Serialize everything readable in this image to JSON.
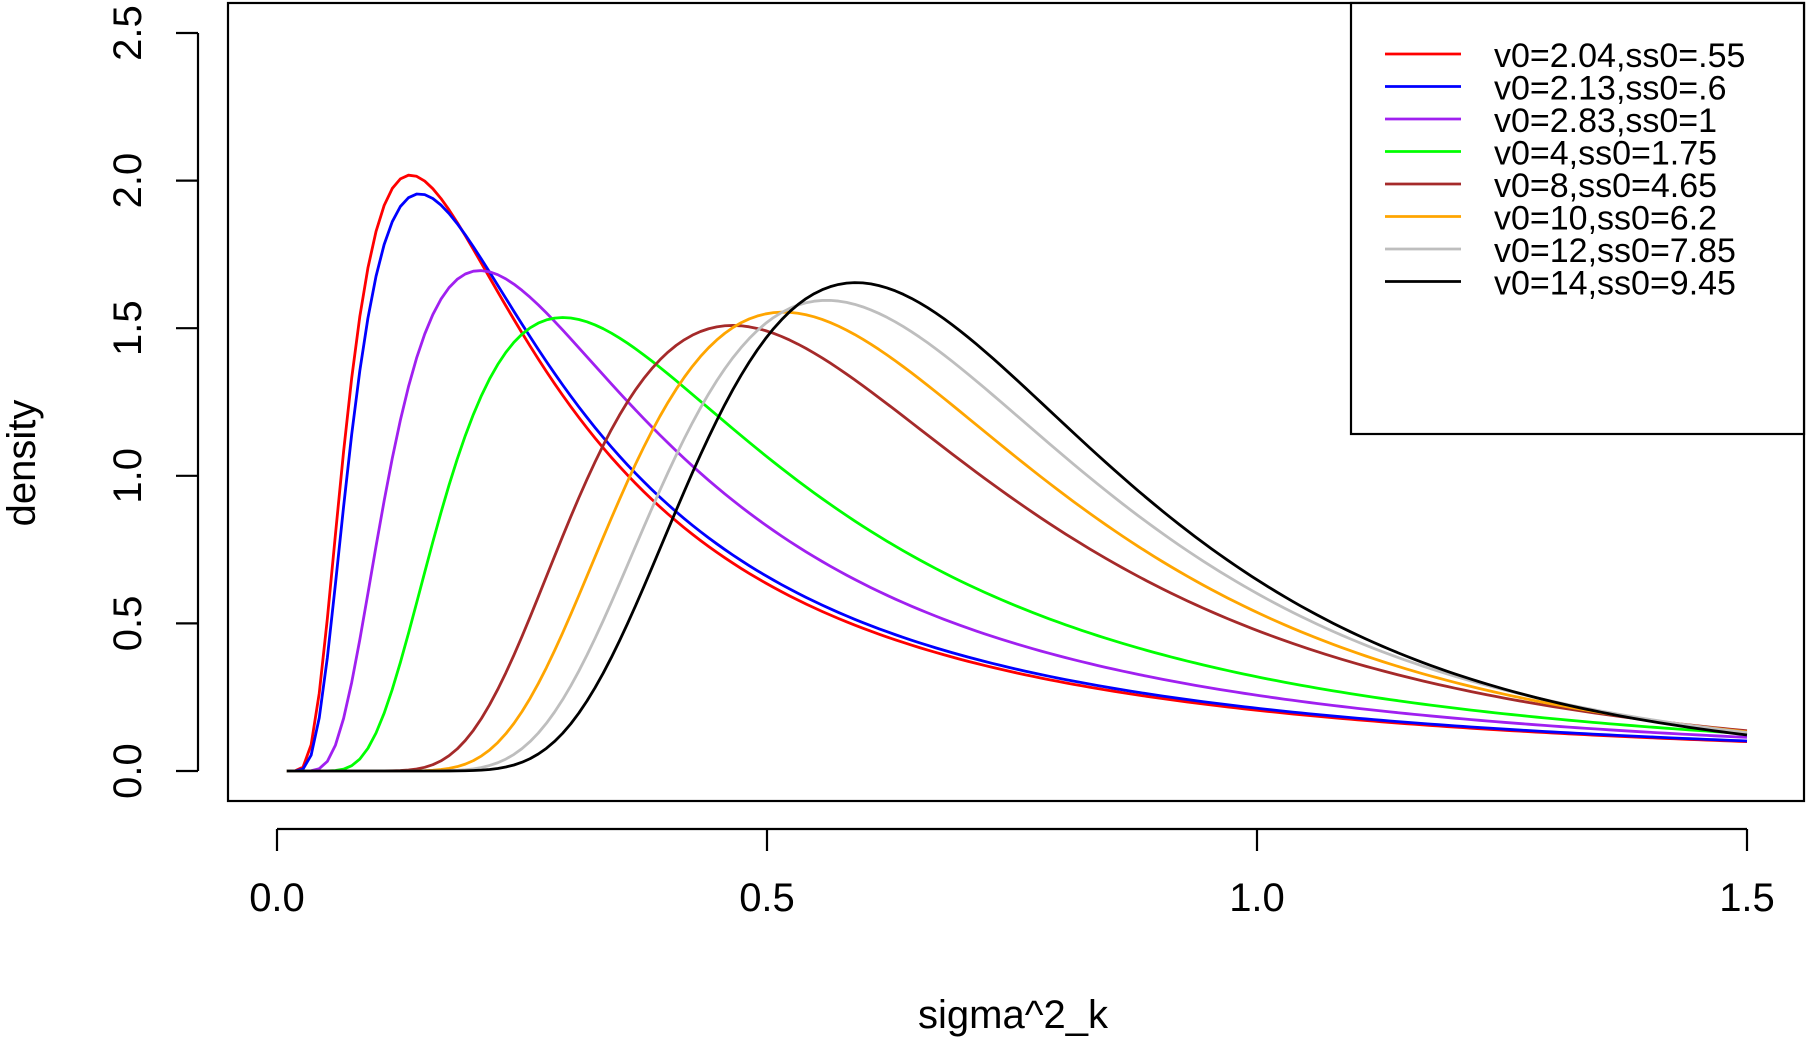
{
  "chart_data": {
    "type": "line",
    "title": "",
    "xlabel": "sigma^2_k",
    "ylabel": "density",
    "xlim": [
      0.0,
      1.5
    ],
    "ylim": [
      0.0,
      2.5
    ],
    "x_ticks": [
      "0.0",
      "0.5",
      "1.0",
      "1.5"
    ],
    "x_tick_values": [
      0.0,
      0.5,
      1.0,
      1.5
    ],
    "y_ticks": [
      "0.0",
      "0.5",
      "1.0",
      "1.5",
      "2.0",
      "2.5"
    ],
    "y_tick_values": [
      0.0,
      0.5,
      1.0,
      1.5,
      2.0,
      2.5
    ],
    "grid": false,
    "legend_position": "top-right",
    "x_range": [
      0.01,
      1.5
    ],
    "series": [
      {
        "name": "v0=2.04,ss0=.55",
        "color": "#ff0000",
        "v0": 2.04,
        "ss0": 0.55
      },
      {
        "name": "v0=2.13,ss0=.6",
        "color": "#0000ff",
        "v0": 2.13,
        "ss0": 0.6
      },
      {
        "name": "v0=2.83,ss0=1",
        "color": "#a020f0",
        "v0": 2.83,
        "ss0": 1.0
      },
      {
        "name": "v0=4,ss0=1.75",
        "color": "#00ff00",
        "v0": 4.0,
        "ss0": 1.75
      },
      {
        "name": "v0=8,ss0=4.65",
        "color": "#a52a2a",
        "v0": 8.0,
        "ss0": 4.65
      },
      {
        "name": "v0=10,ss0=6.2",
        "color": "#ffa500",
        "v0": 10.0,
        "ss0": 6.2
      },
      {
        "name": "v0=12,ss0=7.85",
        "color": "#bebebe",
        "v0": 12.0,
        "ss0": 7.85
      },
      {
        "name": "v0=14,ss0=9.45",
        "color": "#000000",
        "v0": 14.0,
        "ss0": 9.45
      }
    ]
  }
}
